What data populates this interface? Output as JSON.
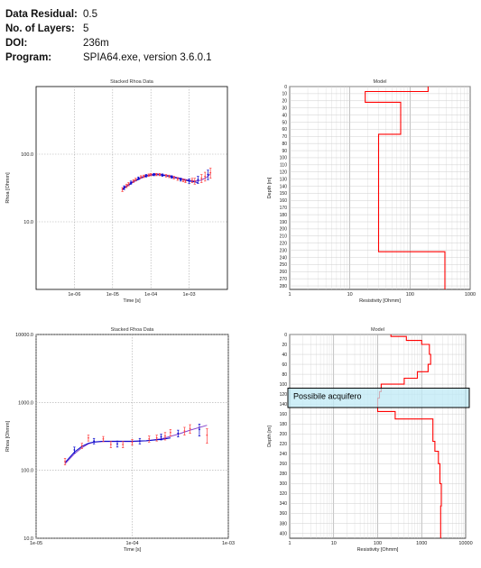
{
  "header": {
    "rows": [
      {
        "label": "Data Residual:",
        "value": "0.5"
      },
      {
        "label": "No. of Layers:",
        "value": "5"
      },
      {
        "label": "DOI:",
        "value": "236m"
      },
      {
        "label": "Program:",
        "value": "SPIA64.exe, version 3.6.0.1"
      }
    ]
  },
  "chart_data": [
    {
      "id": "rhoa1",
      "type": "scatter",
      "title": "Stacked Rhoa Data",
      "xlabel": "Time [s]",
      "ylabel": "Rhoa [Ohmm]",
      "xscale": "log",
      "yscale": "log",
      "xlim": [
        1e-07,
        0.01
      ],
      "ylim": [
        1,
        1000
      ],
      "xticks": [
        1e-06,
        1e-05,
        0.0001,
        0.001
      ],
      "xticklabels": [
        "1e-06",
        "1e-05",
        "1e-04",
        "1e-03"
      ],
      "yticks": [
        10,
        100
      ],
      "yticklabels": [
        "10.0",
        "100.0"
      ],
      "grid": true,
      "colors": {
        "observed": "#ff4040",
        "model": "#0000cc",
        "fit": "#8844cc"
      },
      "observed": {
        "x": [
          1.8e-05,
          2e-05,
          2.3e-05,
          2.6e-05,
          3e-05,
          3.5e-05,
          4e-05,
          4.7e-05,
          5.5e-05,
          6.5e-05,
          7.5e-05,
          8.8e-05,
          0.0001,
          0.00012,
          0.00014,
          0.00017,
          0.0002,
          0.00025,
          0.0003,
          0.00035,
          0.0004,
          0.0005,
          0.0006,
          0.0007,
          0.0008,
          0.001,
          0.0012,
          0.0014,
          0.0017,
          0.0021,
          0.0026,
          0.0031,
          0.0036
        ],
        "y": [
          30,
          32,
          34,
          36,
          38,
          40,
          42,
          44,
          46,
          47,
          48,
          49,
          50,
          50,
          50,
          50,
          49,
          48,
          47,
          46,
          45,
          43,
          42,
          41,
          40,
          40,
          41,
          40,
          42,
          44,
          47,
          50,
          53
        ],
        "err": [
          2,
          2,
          2,
          2,
          2,
          2,
          2,
          2,
          2,
          2,
          2,
          2,
          2,
          2,
          2,
          2,
          2,
          2,
          2,
          2,
          2,
          2,
          2,
          2,
          2,
          3,
          3,
          4,
          5,
          6,
          7,
          8,
          9
        ]
      },
      "model": {
        "x": [
          1.8e-05,
          2.5e-05,
          3.5e-05,
          5e-05,
          7e-05,
          0.0001,
          0.00014,
          0.0002,
          0.0003,
          0.0005,
          0.0007,
          0.001,
          0.0014,
          0.0017
        ],
        "y": [
          30,
          34,
          39,
          43,
          47,
          49,
          50,
          49,
          47,
          44,
          42,
          40,
          39,
          38
        ]
      },
      "fit": {
        "x": [
          1.8e-05,
          2.5e-05,
          3.5e-05,
          5e-05,
          7e-05,
          0.0001,
          0.00014,
          0.0002,
          0.0003,
          0.0005,
          0.0007,
          0.001,
          0.0014,
          0.002,
          0.0028,
          0.0036
        ],
        "y": [
          31,
          35,
          40,
          44,
          48,
          50,
          51,
          50,
          48,
          45,
          43,
          41,
          40,
          41,
          45,
          51
        ]
      }
    },
    {
      "id": "model1",
      "type": "line",
      "title": "Model",
      "xlabel": "Resistivity [Ohmm]",
      "ylabel": "Depth [m]",
      "xscale": "log",
      "xlim": [
        1,
        1000
      ],
      "ylim": [
        0,
        285
      ],
      "xticks": [
        1,
        10,
        100,
        1000
      ],
      "xticklabels": [
        "1",
        "10",
        "100",
        "1000"
      ],
      "yticks": [
        0,
        10,
        20,
        30,
        40,
        50,
        60,
        70,
        80,
        90,
        100,
        110,
        120,
        130,
        140,
        150,
        160,
        170,
        180,
        190,
        200,
        210,
        220,
        230,
        240,
        250,
        260,
        270,
        280
      ],
      "color": "#ff0000",
      "layers": {
        "tops": [
          0,
          7,
          22,
          67,
          232
        ],
        "bottoms": [
          7,
          22,
          67,
          232,
          285
        ],
        "resistivity": [
          200,
          18,
          70,
          30,
          380
        ]
      }
    },
    {
      "id": "rhoa2",
      "type": "scatter",
      "title": "Stacked Rhoa Data",
      "xlabel": "Time [s]",
      "ylabel": "Rhoa [Ohmm]",
      "xscale": "log",
      "yscale": "log",
      "xlim": [
        1e-05,
        0.001
      ],
      "ylim": [
        10,
        10000
      ],
      "xticks": [
        1e-05,
        0.0001,
        0.001
      ],
      "xticklabels": [
        "1e-05",
        "1e-04",
        "1e-03"
      ],
      "yticks": [
        10,
        100,
        1000,
        10000
      ],
      "yticklabels": [
        "10.0",
        "100.0",
        "1000.0",
        "10000.0"
      ],
      "grid": true,
      "colors": {
        "observed": "#ff4040",
        "model": "#0000cc",
        "fit": "#8844cc"
      },
      "observed": {
        "x": [
          2e-05,
          2.5e-05,
          3e-05,
          3.5e-05,
          4e-05,
          5e-05,
          6e-05,
          7e-05,
          8e-05,
          0.0001,
          0.00012,
          0.00015,
          0.00018,
          0.0002,
          0.00022,
          0.00025,
          0.0003,
          0.00035,
          0.0004,
          0.0005,
          0.0006
        ],
        "y": [
          135,
          200,
          230,
          300,
          270,
          290,
          240,
          245,
          240,
          260,
          270,
          290,
          300,
          310,
          320,
          360,
          350,
          380,
          410,
          400,
          330
        ],
        "err": [
          15,
          20,
          20,
          30,
          25,
          25,
          25,
          25,
          25,
          25,
          25,
          30,
          30,
          30,
          40,
          40,
          40,
          50,
          60,
          80,
          80
        ]
      },
      "model": {
        "x": [
          2e-05,
          2.5e-05,
          3e-05,
          3.5e-05,
          4e-05,
          5e-05,
          7e-05,
          0.0001,
          0.00014,
          0.0002,
          0.00025
        ],
        "y": [
          130,
          185,
          225,
          250,
          262,
          268,
          268,
          268,
          272,
          285,
          300
        ]
      },
      "fit": {
        "x": [
          2e-05,
          2.5e-05,
          3e-05,
          3.5e-05,
          4e-05,
          5e-05,
          7e-05,
          0.0001,
          0.00014,
          0.0002,
          0.0003,
          0.0004,
          0.0006
        ],
        "y": [
          125,
          175,
          215,
          245,
          260,
          266,
          266,
          266,
          272,
          290,
          340,
          390,
          460
        ]
      }
    },
    {
      "id": "model2",
      "type": "line",
      "title": "Model",
      "xlabel": "Resistivity [Ohmm]",
      "ylabel": "Depth [m]",
      "xscale": "log",
      "xlim": [
        1,
        10000
      ],
      "ylim": [
        0,
        410
      ],
      "xticks": [
        1,
        10,
        100,
        1000,
        10000
      ],
      "xticklabels": [
        "1",
        "10",
        "100",
        "1000",
        "10000"
      ],
      "yticks": [
        0,
        20,
        40,
        60,
        80,
        100,
        120,
        140,
        160,
        180,
        200,
        220,
        240,
        260,
        280,
        300,
        320,
        340,
        360,
        380,
        400
      ],
      "color": "#ff0000",
      "profile": {
        "resistivity": [
          200,
          200,
          450,
          450,
          1000,
          1000,
          1500,
          1500,
          1500,
          1600,
          1600,
          1400,
          1400,
          800,
          800,
          400,
          400,
          120,
          120,
          110,
          110,
          100,
          100,
          250,
          250,
          1800,
          1800,
          2000,
          2000,
          2400,
          2400,
          2600,
          2600,
          2800,
          2800,
          2700,
          2700
        ],
        "depth": [
          0,
          4,
          4,
          12,
          12,
          20,
          20,
          30,
          40,
          40,
          60,
          60,
          75,
          75,
          88,
          88,
          100,
          100,
          115,
          115,
          128,
          128,
          155,
          155,
          170,
          170,
          215,
          215,
          235,
          235,
          260,
          260,
          300,
          300,
          345,
          345,
          410
        ]
      },
      "annotation": {
        "label": "Possibile acquifero",
        "depth_top": 108,
        "depth_bottom": 147,
        "fill": "#bfe9f5",
        "stroke": "#000000"
      }
    }
  ]
}
